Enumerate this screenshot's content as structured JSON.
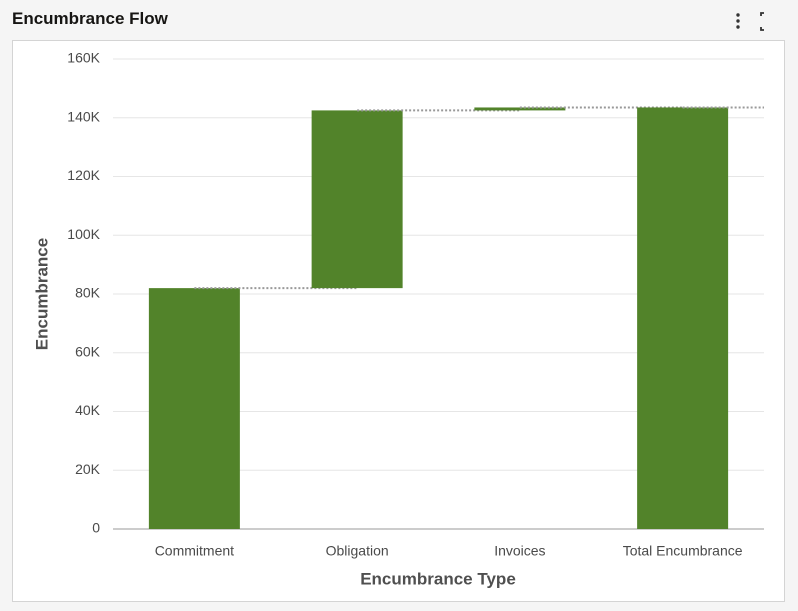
{
  "chart_data": {
    "type": "waterfall",
    "title": "Encumbrance Flow",
    "x_label": "Encumbrance Type",
    "y_label": "Encumbrance",
    "categories": [
      "Commitment",
      "Obligation",
      "Invoices",
      "Total Encumbrance"
    ],
    "values": [
      82000,
      60500,
      1000,
      143500
    ],
    "last_is_total": true,
    "color": "#52832a",
    "ylim": [
      0,
      160000
    ],
    "yticks": [
      0,
      {
        "value": 20000,
        "label": "20K"
      },
      {
        "value": 40000,
        "label": "40K"
      },
      {
        "value": 60000,
        "label": "60K"
      },
      {
        "value": 80000,
        "label": "80K"
      },
      {
        "value": 100000,
        "label": "100K"
      },
      {
        "value": 120000,
        "label": "120K"
      },
      {
        "value": 140000,
        "label": "140K"
      },
      {
        "value": 160000,
        "label": "160K"
      }
    ],
    "grid": true
  }
}
